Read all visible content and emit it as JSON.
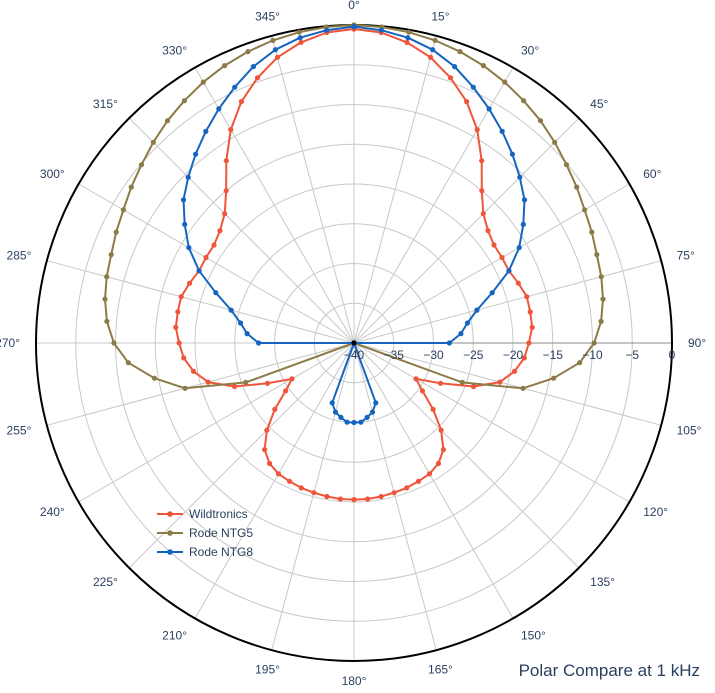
{
  "chart_data": {
    "type": "polar-line",
    "title": "Polar Compare at 1 kHz",
    "radial_range": [
      -40,
      0
    ],
    "radial_ticks": [
      -40,
      -35,
      -30,
      -25,
      -20,
      -15,
      -10,
      -5,
      0
    ],
    "radial_tick_labels": [
      "−40",
      "−35",
      "−30",
      "−25",
      "−20",
      "−15",
      "−10",
      "−5",
      "0"
    ],
    "angular_direction": "clockwise",
    "angular_zero": "top",
    "angular_ticks": [
      0,
      15,
      30,
      45,
      60,
      75,
      90,
      105,
      120,
      135,
      150,
      165,
      180,
      195,
      210,
      225,
      240,
      255,
      270,
      285,
      300,
      315,
      330,
      345
    ],
    "angular_tick_labels": [
      "0°",
      "15°",
      "30°",
      "45°",
      "60°",
      "75°",
      "90°",
      "105°",
      "120°",
      "135°",
      "150°",
      "165°",
      "180°",
      "195°",
      "210°",
      "225°",
      "240°",
      "255°",
      "270°",
      "285°",
      "300°",
      "315°",
      "330°",
      "345°"
    ],
    "grid": true,
    "legend_position": "bottom-left",
    "series": [
      {
        "name": "Wildtronics",
        "color": "#ef553b",
        "theta": [
          0,
          5,
          10,
          15,
          20,
          25,
          30,
          35,
          40,
          45,
          50,
          55,
          60,
          65,
          70,
          75,
          80,
          85,
          90,
          95,
          100,
          105,
          110,
          115,
          120,
          125,
          130,
          135,
          140,
          145,
          150,
          155,
          160,
          165,
          170,
          175,
          180,
          185,
          190,
          195,
          200,
          205,
          210,
          215,
          220,
          225,
          230,
          235,
          240,
          245,
          250,
          255,
          260,
          265,
          270,
          275,
          280,
          285,
          290,
          295,
          300,
          305,
          310,
          315,
          320,
          325,
          330,
          335,
          340,
          345,
          350,
          355,
          360
        ],
        "r": [
          -0.5,
          -0.8,
          -1.6,
          -2.8,
          -4.5,
          -6.5,
          -9.0,
          -12.0,
          -15.0,
          -17.0,
          -18.0,
          -18.5,
          -18.5,
          -18.5,
          -18.0,
          -17.5,
          -17.5,
          -17.5,
          -18.0,
          -18.5,
          -19.5,
          -21.0,
          -24.0,
          -28.0,
          -31.0,
          -29.5,
          -27.0,
          -24.5,
          -22.5,
          -21.5,
          -21.0,
          -20.8,
          -20.6,
          -20.5,
          -20.4,
          -20.3,
          -20.3,
          -20.3,
          -20.4,
          -20.5,
          -20.6,
          -20.8,
          -21.0,
          -21.5,
          -22.5,
          -24.5,
          -27.0,
          -29.5,
          -31.0,
          -28.0,
          -24.0,
          -21.0,
          -19.5,
          -18.5,
          -18.0,
          -17.5,
          -17.5,
          -17.5,
          -18.0,
          -18.5,
          -18.5,
          -18.5,
          -18.0,
          -17.0,
          -15.0,
          -12.0,
          -9.0,
          -6.5,
          -4.5,
          -2.8,
          -1.6,
          -0.8,
          -0.5
        ]
      },
      {
        "name": "Rode NTG5",
        "color": "#8c7b47",
        "theta": [
          0,
          5,
          10,
          15,
          20,
          25,
          30,
          35,
          40,
          45,
          50,
          55,
          60,
          65,
          70,
          75,
          80,
          85,
          90,
          95,
          100,
          105,
          110,
          115,
          120,
          125,
          130,
          135,
          140,
          145,
          150,
          155,
          160,
          165,
          170,
          175,
          180,
          185,
          190,
          195,
          200,
          205,
          210,
          215,
          220,
          225,
          230,
          235,
          240,
          245,
          250,
          255,
          260,
          265,
          270,
          275,
          280,
          285,
          290,
          295,
          300,
          305,
          310,
          315,
          320,
          325,
          330,
          335,
          340,
          345,
          350,
          355,
          360
        ],
        "r": [
          0,
          -0.1,
          -0.3,
          -0.6,
          -1.0,
          -1.5,
          -2.1,
          -2.8,
          -3.5,
          -4.3,
          -5.1,
          -5.8,
          -6.5,
          -7.0,
          -7.5,
          -7.8,
          -8.2,
          -8.8,
          -9.8,
          -11.5,
          -14.5,
          -18.0,
          -25.5,
          -40,
          -40,
          -40,
          -40,
          -40,
          -40,
          -40,
          -40,
          -40,
          -40,
          -40,
          -40,
          -40,
          -40,
          -40,
          -40,
          -40,
          -40,
          -40,
          -40,
          -40,
          -40,
          -40,
          -40,
          -40,
          -40,
          -40,
          -25.5,
          -18.0,
          -14.5,
          -11.5,
          -9.8,
          -8.8,
          -8.2,
          -7.8,
          -7.5,
          -7.0,
          -6.5,
          -5.8,
          -5.1,
          -4.3,
          -3.5,
          -2.8,
          -2.1,
          -1.5,
          -1.0,
          -0.6,
          -0.3,
          -0.1,
          0
        ]
      },
      {
        "name": "Rode NTG8",
        "color": "#1565c0",
        "theta": [
          0,
          5,
          10,
          15,
          20,
          25,
          30,
          35,
          40,
          45,
          50,
          55,
          60,
          65,
          70,
          75,
          80,
          85,
          90,
          95,
          100,
          105,
          110,
          115,
          120,
          125,
          130,
          135,
          140,
          145,
          150,
          155,
          160,
          165,
          170,
          175,
          180,
          185,
          190,
          195,
          200,
          205,
          210,
          215,
          220,
          225,
          230,
          235,
          240,
          245,
          250,
          255,
          260,
          265,
          270,
          275,
          280,
          285,
          290,
          295,
          300,
          305,
          310,
          315,
          320,
          325,
          330,
          335,
          340,
          345,
          350,
          355,
          360
        ],
        "r": [
          -0.2,
          -0.5,
          -1.0,
          -1.8,
          -3.0,
          -4.5,
          -6.0,
          -7.5,
          -9.0,
          -10.5,
          -12.0,
          -14.0,
          -16.0,
          -18.5,
          -21.5,
          -24.0,
          -25.5,
          -26.5,
          -28.0,
          -40,
          -40,
          -40,
          -40,
          -40,
          -40,
          -40,
          -40,
          -40,
          -40,
          -40,
          -40,
          -40,
          -32.0,
          -31.0,
          -30.5,
          -30.0,
          -30.0,
          -30.0,
          -30.5,
          -31.0,
          -32.0,
          -40,
          -40,
          -40,
          -40,
          -40,
          -40,
          -40,
          -40,
          -40,
          -40,
          -40,
          -40,
          -40,
          -28.0,
          -26.5,
          -25.5,
          -24.0,
          -21.5,
          -18.5,
          -16.0,
          -14.0,
          -12.0,
          -10.5,
          -9.0,
          -7.5,
          -6.0,
          -4.5,
          -3.0,
          -1.8,
          -1.0,
          -0.5,
          -0.2
        ]
      }
    ]
  }
}
